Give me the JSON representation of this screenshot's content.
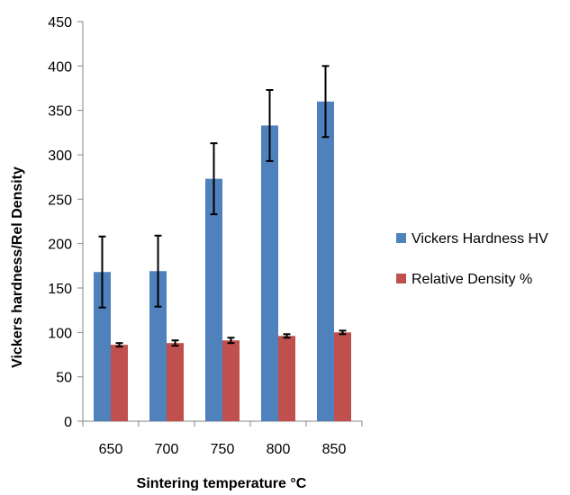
{
  "chart_data": {
    "type": "bar",
    "title": "",
    "xlabel": "Sintering temperature °C",
    "ylabel": "Vickers hardness/Rel Density",
    "ylim": [
      0,
      450
    ],
    "yticks": [
      0,
      50,
      100,
      150,
      200,
      250,
      300,
      350,
      400,
      450
    ],
    "categories": [
      "650",
      "700",
      "750",
      "800",
      "850"
    ],
    "series": [
      {
        "name": "Vickers Hardness HV",
        "color": "#4F81BD",
        "values": [
          168,
          169,
          273,
          333,
          360
        ],
        "error": [
          40,
          40,
          40,
          40,
          40
        ]
      },
      {
        "name": "Relative Density %",
        "color": "#C0504D",
        "values": [
          86,
          88,
          91,
          96,
          100
        ],
        "error": [
          2,
          3,
          3,
          2,
          2
        ]
      }
    ],
    "legend_position": "right",
    "grid": false
  }
}
